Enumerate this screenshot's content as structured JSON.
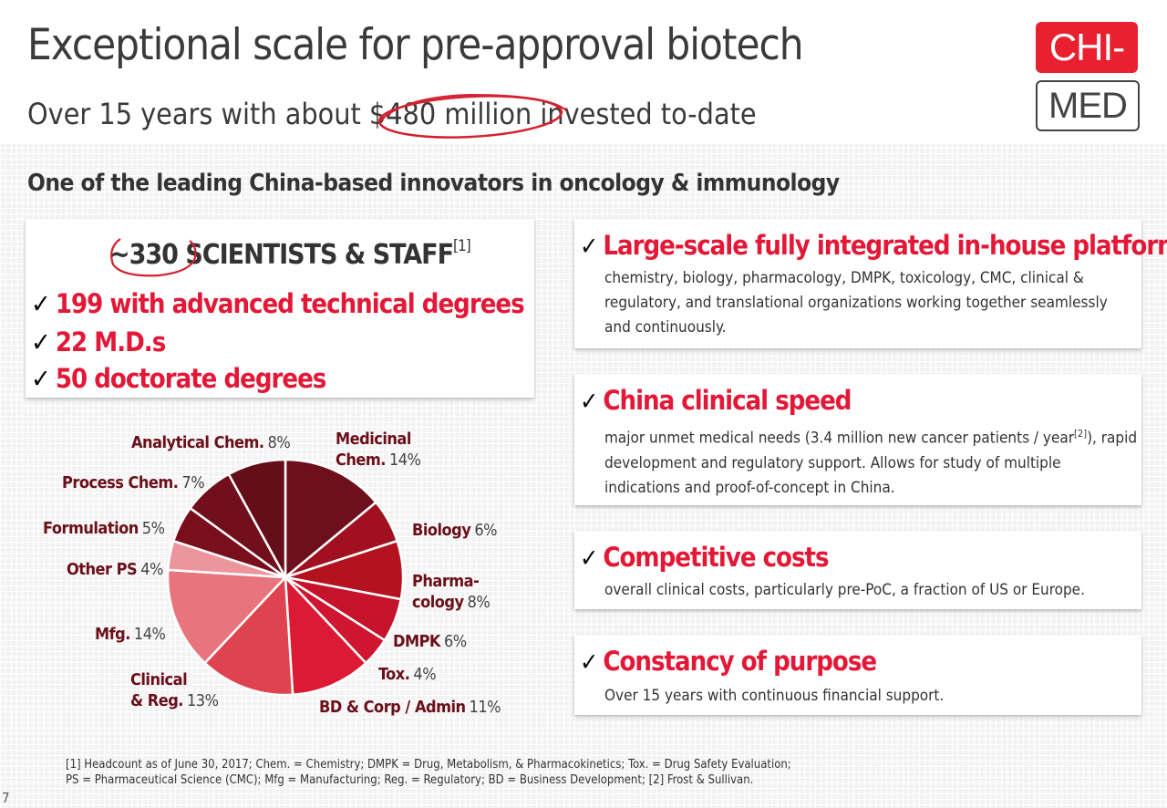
{
  "header": {
    "title": "Exceptional scale for pre-approval biotech",
    "subtitle_pre": "Over 15 years with about ",
    "subtitle_highlight": "$480 million",
    "subtitle_post": " invested to-date",
    "logo_top": "CHI-",
    "logo_bottom": "MED"
  },
  "section_heading": "One of the leading China-based innovators in oncology & immunology",
  "staff": {
    "count": "~330",
    "label": " SCIENTISTS & STAFF",
    "ref": "[1]",
    "items": [
      "199 with advanced technical degrees",
      "22 M.D.s",
      "50 doctorate degrees"
    ]
  },
  "check_mark": "✓",
  "cards": [
    {
      "title": "Large-scale fully integrated in-house platform",
      "body": "chemistry, biology, pharmacology, DMPK, toxicology, CMC, clinical & regulatory, and translational organizations working together seamlessly and continuously."
    },
    {
      "title": "China clinical speed",
      "body_pre": "major unmet medical needs (3.4 million new cancer patients / year",
      "body_ref": "[2]",
      "body_post": "), rapid development and regulatory support.  Allows for study of multiple indications and proof-of-concept in China."
    },
    {
      "title": "Competitive costs",
      "body": "overall clinical costs, particularly pre-PoC, a fraction of US or Europe."
    },
    {
      "title": "Constancy of purpose",
      "body": "Over 15 years with continuous financial support."
    }
  ],
  "chart_data": {
    "type": "pie",
    "unit": "%",
    "slices": [
      {
        "label": "Medicinal Chem.",
        "label_lines": [
          "Medicinal",
          "Chem."
        ],
        "value": 14,
        "color": "#6d0f1c"
      },
      {
        "label": "Biology",
        "label_lines": [
          "Biology"
        ],
        "value": 6,
        "color": "#a0101f"
      },
      {
        "label": "Pharmacology",
        "label_lines": [
          "Pharma-",
          "cology"
        ],
        "value": 8,
        "color": "#b5121f"
      },
      {
        "label": "DMPK",
        "label_lines": [
          "DMPK"
        ],
        "value": 6,
        "color": "#c4132a"
      },
      {
        "label": "Tox.",
        "label_lines": [
          "Tox."
        ],
        "value": 4,
        "color": "#cf1530"
      },
      {
        "label": "BD & Corp / Admin",
        "label_lines": [
          "BD & Corp / Admin"
        ],
        "value": 11,
        "color": "#dc1a33"
      },
      {
        "label": "Clinical & Reg.",
        "label_lines": [
          "Clinical",
          "& Reg."
        ],
        "value": 13,
        "color": "#e04350"
      },
      {
        "label": "Mfg.",
        "label_lines": [
          "Mfg."
        ],
        "value": 14,
        "color": "#e8747e"
      },
      {
        "label": "Other PS",
        "label_lines": [
          "Other PS"
        ],
        "value": 4,
        "color": "#ed959c"
      },
      {
        "label": "Formulation",
        "label_lines": [
          "Formulation"
        ],
        "value": 5,
        "color": "#7a0f1c"
      },
      {
        "label": "Process Chem.",
        "label_lines": [
          "Process Chem."
        ],
        "value": 7,
        "color": "#720f1c"
      },
      {
        "label": "Analytical Chem.",
        "label_lines": [
          "Analytical Chem."
        ],
        "value": 8,
        "color": "#650d18"
      }
    ]
  },
  "footnote_lines": [
    "[1]  Headcount as of June 30, 2017; Chem. = Chemistry; DMPK = Drug, Metabolism, & Pharmacokinetics; Tox. = Drug Safety Evaluation;",
    "PS = Pharmaceutical Science (CMC); Mfg = Manufacturing; Reg. = Regulatory; BD = Business Development; [2] Frost & Sullivan."
  ],
  "page_number": "7"
}
